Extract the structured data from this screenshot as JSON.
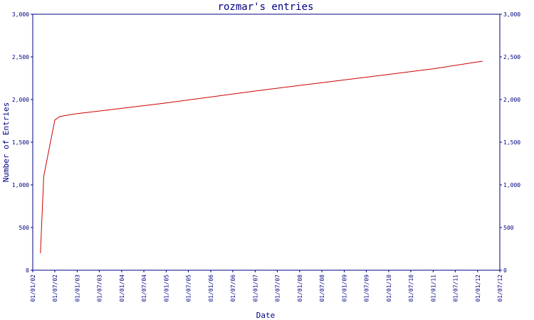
{
  "colors": {
    "axis": "#000080",
    "series": "#cc0000",
    "background": "#ffffff"
  },
  "chart_data": {
    "type": "line",
    "title": "rozmar's entries",
    "xlabel": "Date",
    "ylabel": "Number of Entries",
    "ylim": [
      0,
      3000
    ],
    "y_ticks": [
      0,
      500,
      1000,
      1500,
      2000,
      2500,
      3000
    ],
    "y_tick_labels": [
      "0",
      "500",
      "1,000",
      "1,500",
      "2,000",
      "2,500",
      "3,000"
    ],
    "x_range": [
      "2002-01-01",
      "2012-07-01"
    ],
    "x_tick_dates": [
      "2002-01-01",
      "2002-07-01",
      "2003-01-01",
      "2003-07-01",
      "2004-01-01",
      "2004-07-01",
      "2005-01-01",
      "2005-07-01",
      "2006-01-01",
      "2006-07-01",
      "2007-01-01",
      "2007-07-01",
      "2008-01-01",
      "2008-07-01",
      "2009-01-01",
      "2009-07-01",
      "2010-01-01",
      "2010-07-01",
      "2011-01-01",
      "2011-07-01",
      "2012-01-01",
      "2012-07-01"
    ],
    "x_tick_labels": [
      "01/01/02",
      "01/07/02",
      "01/01/03",
      "01/07/03",
      "01/01/04",
      "01/07/04",
      "01/01/05",
      "01/07/05",
      "01/01/06",
      "01/07/06",
      "01/01/07",
      "01/07/07",
      "01/01/08",
      "01/07/08",
      "01/01/09",
      "01/07/09",
      "01/01/10",
      "01/07/10",
      "01/01/11",
      "01/07/11",
      "01/01/12",
      "01/07/12"
    ],
    "grid": false,
    "series": [
      {
        "x": [
          "2002-03-05",
          "2002-04-01",
          "2002-07-01",
          "2002-08-10",
          "2002-10-01",
          "2003-01-01",
          "2005-01-01",
          "2007-01-01",
          "2009-01-01",
          "2011-01-01",
          "2012-02-10"
        ],
        "y": [
          200,
          1100,
          1760,
          1800,
          1815,
          1835,
          1960,
          2100,
          2230,
          2360,
          2450
        ]
      }
    ]
  }
}
